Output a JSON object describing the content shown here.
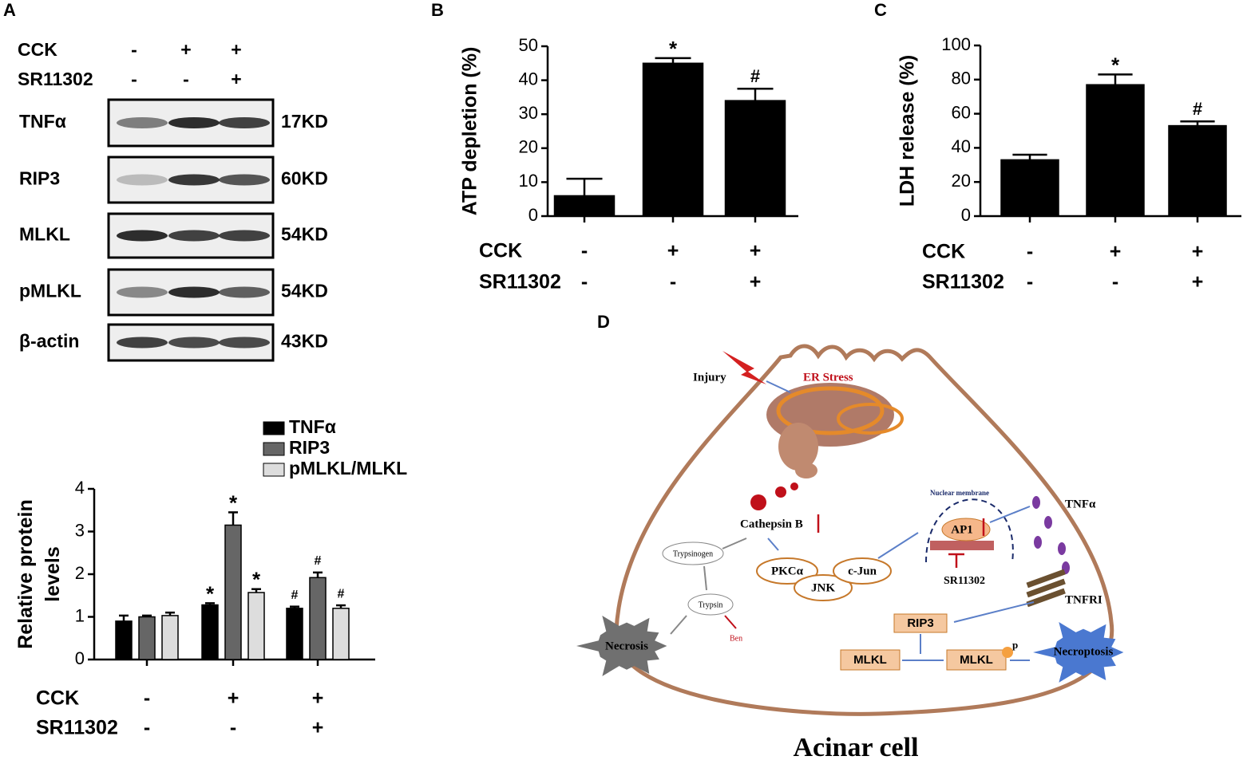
{
  "panels": [
    "A",
    "B",
    "C",
    "D"
  ],
  "blot": {
    "conditions": [
      {
        "name": "CCK",
        "labels": [
          "-",
          "+",
          "+"
        ]
      },
      {
        "name": "SR11302",
        "labels": [
          "-",
          "-",
          "+"
        ]
      }
    ],
    "rows": [
      {
        "label": "TNFα",
        "size": "17KD"
      },
      {
        "label": "RIP3",
        "size": "60KD"
      },
      {
        "label": "MLKL",
        "size": "54KD"
      },
      {
        "label": "pMLKL",
        "size": "54KD"
      },
      {
        "label": "β-actin",
        "size": "43KD"
      }
    ]
  },
  "chart_data": [
    {
      "type": "bar",
      "y_label": "Relative protein levels",
      "ylim": [
        0,
        4
      ],
      "yticks": [
        0,
        1,
        2,
        3,
        4
      ],
      "conditions": [
        {
          "name": "CCK",
          "labels": [
            "-",
            "+",
            "+"
          ]
        },
        {
          "name": "SR11302",
          "labels": [
            "-",
            "-",
            "+"
          ]
        }
      ],
      "series": [
        {
          "name": "TNFα",
          "color": "#000000",
          "values": [
            0.9,
            1.28,
            1.2
          ],
          "errors": [
            0.13,
            0.04,
            0.04
          ],
          "significance": [
            null,
            "*",
            "#"
          ]
        },
        {
          "name": "RIP3",
          "color": "#666666",
          "values": [
            1.0,
            3.15,
            1.92
          ],
          "errors": [
            0.03,
            0.3,
            0.12
          ],
          "significance": [
            null,
            "*",
            "#"
          ]
        },
        {
          "name": "pMLKL/MLKL",
          "color": "#dddddd",
          "values": [
            1.03,
            1.57,
            1.2
          ],
          "errors": [
            0.07,
            0.08,
            0.07
          ],
          "significance": [
            null,
            "*",
            "#"
          ]
        }
      ]
    },
    {
      "type": "bar",
      "y_label": "ATP depletion (%)",
      "ylim": [
        0,
        50
      ],
      "yticks": [
        0,
        10,
        20,
        30,
        40,
        50
      ],
      "conditions": [
        {
          "name": "CCK",
          "labels": [
            "-",
            "+",
            "+"
          ]
        },
        {
          "name": "SR11302",
          "labels": [
            "-",
            "-",
            "+"
          ]
        }
      ],
      "series": [
        {
          "color": "#000000",
          "values": [
            6,
            45,
            34
          ],
          "errors": [
            5,
            1.5,
            3.5
          ],
          "significance": [
            null,
            "*",
            "#"
          ]
        }
      ]
    },
    {
      "type": "bar",
      "y_label": "LDH release (%)",
      "ylim": [
        0,
        100
      ],
      "yticks": [
        0,
        20,
        40,
        60,
        80,
        100
      ],
      "conditions": [
        {
          "name": "CCK",
          "labels": [
            "-",
            "+",
            "+"
          ]
        },
        {
          "name": "SR11302",
          "labels": [
            "-",
            "-",
            "+"
          ]
        }
      ],
      "series": [
        {
          "color": "#000000",
          "values": [
            33,
            77,
            53
          ],
          "errors": [
            3,
            6,
            2.5
          ],
          "significance": [
            null,
            "*",
            "#"
          ]
        }
      ]
    }
  ],
  "diagram": {
    "title": "Acinar cell",
    "injury": "Injury",
    "er_stress": "ER Stress",
    "cathepsin": "Cathepsin B",
    "trypsinogen": "Trypsinogen",
    "trypsin": "Trypsin",
    "ben": "Ben",
    "necrosis": "Necrosis",
    "pkc": "PKCα",
    "jnk": "JNK",
    "cjun": "c-Jun",
    "nuclear": "Nuclear membrane",
    "ap1": "AP1",
    "inhibitor": "SR11302",
    "tnf": "TNFα",
    "tnfr": "TNFRI",
    "rip3": "RIP3",
    "mlkl1": "MLKL",
    "mlkl2": "MLKL",
    "p": "p",
    "necroptosis": "Necroptosis"
  }
}
